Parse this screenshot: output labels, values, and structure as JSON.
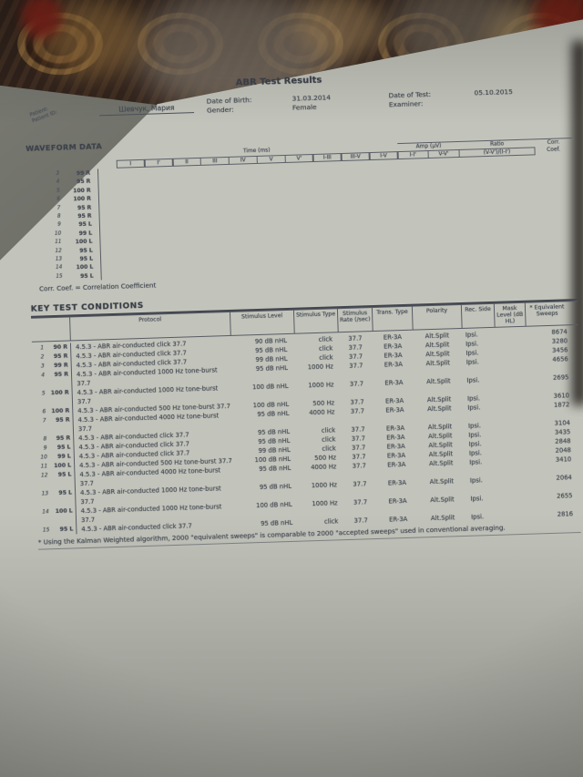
{
  "photo": {
    "colors": {
      "carpet_dark": "#362720",
      "carpet_tan": "#8a683c",
      "carpet_red": "#7d241a",
      "paper": "#c2c4bb",
      "ink": "#474c55"
    }
  },
  "document": {
    "title": "ABR Test Results",
    "patient": {
      "label_patient": "Patient:",
      "label_patient_id": "Patient ID:",
      "name": "Шевчук, Мария",
      "dob_label": "Date of Birth:",
      "gender_label": "Gender:",
      "dob": "31.03.2014",
      "gender": "Female",
      "test_date_label": "Date of Test:",
      "examiner_label": "Examiner:",
      "test_date": "05.10.2015"
    },
    "waveform": {
      "section_title": "WAVEFORM DATA",
      "time_header": "Time (ms)",
      "amp_header": "Amp (µV)",
      "ratio_header": "Ratio",
      "ratio_sub": "(V-V')/(I-I')",
      "corr_line1": "Corr.",
      "corr_line2": "Coef.",
      "time_columns": [
        "I",
        "I'",
        "II",
        "III",
        "IV",
        "V",
        "V'",
        "I-III",
        "III-V",
        "I-V"
      ],
      "amp_columns": [
        "I-I'",
        "V-V'"
      ],
      "rows": [
        {
          "num": "3",
          "cond": "99 R"
        },
        {
          "num": "4",
          "cond": "95 R"
        },
        {
          "num": "5",
          "cond": "100 R"
        },
        {
          "num": "6",
          "cond": "100 R"
        },
        {
          "num": "7",
          "cond": "95 R"
        },
        {
          "num": "8",
          "cond": "95 R"
        },
        {
          "num": "9",
          "cond": "95 L"
        },
        {
          "num": "10",
          "cond": "99 L"
        },
        {
          "num": "11",
          "cond": "100 L"
        },
        {
          "num": "12",
          "cond": "95 L"
        },
        {
          "num": "13",
          "cond": "95 L"
        },
        {
          "num": "14",
          "cond": "100 L"
        },
        {
          "num": "15",
          "cond": "95 L"
        }
      ],
      "legend": "Corr. Coef. = Correlation Coefficient"
    },
    "key_test": {
      "section_title": "KEY TEST CONDITIONS",
      "columns": {
        "protocol": "Protocol",
        "level": "Stimulus Level",
        "type": "Stimulus Type",
        "rate": "Stimulus Rate (/sec)",
        "trans": "Trans. Type",
        "polarity": "Polarity",
        "rec": "Rec. Side",
        "mask": "Mask Level (dB HL)",
        "sweeps": "* Equivalent Sweeps"
      },
      "rows": [
        {
          "num": "1",
          "cond": "90 R",
          "protocol": "4.5.3 - ABR air-conducted click 37.7",
          "level": "90 dB nHL",
          "type": "click",
          "rate": "37.7",
          "trans": "ER-3A",
          "polarity": "Alt.Split",
          "rec": "Ipsi.",
          "mask": "",
          "sweeps": "8674"
        },
        {
          "num": "2",
          "cond": "95 R",
          "protocol": "4.5.3 - ABR air-conducted click 37.7",
          "level": "95 dB nHL",
          "type": "click",
          "rate": "37.7",
          "trans": "ER-3A",
          "polarity": "Alt.Split",
          "rec": "Ipsi.",
          "mask": "",
          "sweeps": "3280"
        },
        {
          "num": "3",
          "cond": "99 R",
          "protocol": "4.5.3 - ABR air-conducted click 37.7",
          "level": "99 dB nHL",
          "type": "click",
          "rate": "37.7",
          "trans": "ER-3A",
          "polarity": "Alt.Split",
          "rec": "Ipsi.",
          "mask": "",
          "sweeps": "3456"
        },
        {
          "num": "4",
          "cond": "95 R",
          "protocol": "4.5.3 - ABR air-conducted 1000 Hz tone-burst 37.7",
          "level": "95 dB nHL",
          "type": "1000 Hz",
          "rate": "37.7",
          "trans": "ER-3A",
          "polarity": "Alt.Split",
          "rec": "Ipsi.",
          "mask": "",
          "sweeps": "4656"
        },
        {
          "num": "5",
          "cond": "100 R",
          "protocol": "4.5.3 - ABR air-conducted 1000 Hz tone-burst 37.7",
          "level": "100 dB nHL",
          "type": "1000 Hz",
          "rate": "37.7",
          "trans": "ER-3A",
          "polarity": "Alt.Split",
          "rec": "Ipsi.",
          "mask": "",
          "sweeps": "2695"
        },
        {
          "num": "6",
          "cond": "100 R",
          "protocol": "4.5.3 - ABR air-conducted 500 Hz tone-burst 37.7",
          "level": "100 dB nHL",
          "type": "500 Hz",
          "rate": "37.7",
          "trans": "ER-3A",
          "polarity": "Alt.Split",
          "rec": "Ipsi.",
          "mask": "",
          "sweeps": "3610"
        },
        {
          "num": "7",
          "cond": "95 R",
          "protocol": "4.5.3 - ABR air-conducted 4000 Hz tone-burst 37.7",
          "level": "95 dB nHL",
          "type": "4000 Hz",
          "rate": "37.7",
          "trans": "ER-3A",
          "polarity": "Alt.Split",
          "rec": "Ipsi.",
          "mask": "",
          "sweeps": "1872"
        },
        {
          "num": "8",
          "cond": "95 R",
          "protocol": "4.5.3 - ABR air-conducted click 37.7",
          "level": "95 dB nHL",
          "type": "click",
          "rate": "37.7",
          "trans": "ER-3A",
          "polarity": "Alt.Split",
          "rec": "Ipsi.",
          "mask": "",
          "sweeps": "3104"
        },
        {
          "num": "9",
          "cond": "95 L",
          "protocol": "4.5.3 - ABR air-conducted click 37.7",
          "level": "95 dB nHL",
          "type": "click",
          "rate": "37.7",
          "trans": "ER-3A",
          "polarity": "Alt.Split",
          "rec": "Ipsi.",
          "mask": "",
          "sweeps": "3435"
        },
        {
          "num": "10",
          "cond": "99 L",
          "protocol": "4.5.3 - ABR air-conducted click 37.7",
          "level": "99 dB nHL",
          "type": "click",
          "rate": "37.7",
          "trans": "ER-3A",
          "polarity": "Alt.Split",
          "rec": "Ipsi.",
          "mask": "",
          "sweeps": "2848"
        },
        {
          "num": "11",
          "cond": "100 L",
          "protocol": "4.5.3 - ABR air-conducted 500 Hz tone-burst 37.7",
          "level": "100 dB nHL",
          "type": "500 Hz",
          "rate": "37.7",
          "trans": "ER-3A",
          "polarity": "Alt.Split",
          "rec": "Ipsi.",
          "mask": "",
          "sweeps": "2048"
        },
        {
          "num": "12",
          "cond": "95 L",
          "protocol": "4.5.3 - ABR air-conducted 4000 Hz tone-burst 37.7",
          "level": "95 dB nHL",
          "type": "4000 Hz",
          "rate": "37.7",
          "trans": "ER-3A",
          "polarity": "Alt.Split",
          "rec": "Ipsi.",
          "mask": "",
          "sweeps": "3410"
        },
        {
          "num": "13",
          "cond": "95 L",
          "protocol": "4.5.3 - ABR air-conducted 1000 Hz tone-burst 37.7",
          "level": "95 dB nHL",
          "type": "1000 Hz",
          "rate": "37.7",
          "trans": "ER-3A",
          "polarity": "Alt.Split",
          "rec": "Ipsi.",
          "mask": "",
          "sweeps": "2064"
        },
        {
          "num": "14",
          "cond": "100 L",
          "protocol": "4.5.3 - ABR air-conducted 1000 Hz tone-burst 37.7",
          "level": "100 dB nHL",
          "type": "1000 Hz",
          "rate": "37.7",
          "trans": "ER-3A",
          "polarity": "Alt.Split",
          "rec": "Ipsi.",
          "mask": "",
          "sweeps": "2655"
        },
        {
          "num": "15",
          "cond": "95 L",
          "protocol": "4.5.3 - ABR air-conducted click 37.7",
          "level": "95 dB nHL",
          "type": "click",
          "rate": "37.7",
          "trans": "ER-3A",
          "polarity": "Alt.Split",
          "rec": "Ipsi.",
          "mask": "",
          "sweeps": "2816"
        }
      ],
      "footnote": "* Using the Kalman Weighted algorithm, 2000 \"equivalent sweeps\" is comparable to 2000 \"accepted sweeps\" used in conventional averaging."
    }
  }
}
